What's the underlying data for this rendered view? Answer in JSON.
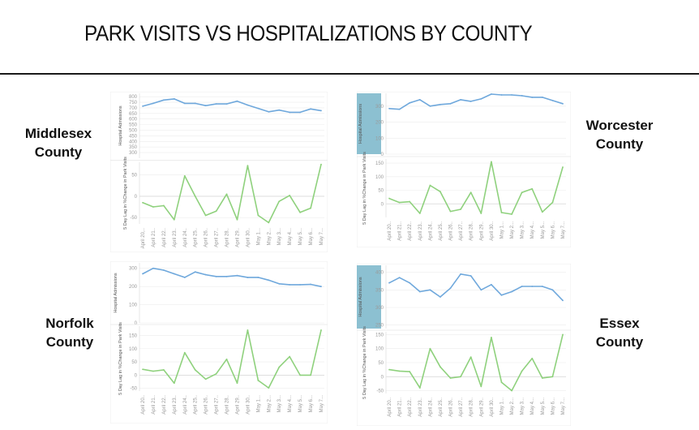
{
  "page_title": "PARK VISITS VS HOSPITALIZATIONS BY COUNTY",
  "colors": {
    "hospital_line": "#6fa8dc",
    "park_line": "#8fd17d",
    "axis_highlight": "#8cc0d1",
    "grid": "#ececec"
  },
  "chart_data": [
    {
      "county_label": "Middlesex County",
      "label_lines": [
        "Middlesex",
        "County"
      ],
      "highlight_axis": false,
      "x_ticks": [
        "April 20,..",
        "April 21..",
        "April 22..",
        "April 23..",
        "April 24..",
        "April 25..",
        "April 26..",
        "April 27..",
        "April 28..",
        "April 29..",
        "April 30..",
        "May 1...",
        "May 2...",
        "May 3...",
        "May 4...",
        "May 5...",
        "May 6...",
        "May 7..."
      ],
      "top": {
        "type": "line",
        "ylabel": "Hospital Admissions",
        "ylim": [
          250,
          830
        ],
        "yticks": [
          300,
          350,
          400,
          450,
          500,
          550,
          600,
          650,
          700,
          750,
          800
        ],
        "values": [
          715,
          740,
          770,
          780,
          740,
          740,
          720,
          735,
          735,
          760,
          725,
          695,
          665,
          680,
          660,
          660,
          690,
          675
        ]
      },
      "bottom": {
        "type": "line",
        "ylabel": "5 Day Lag in %Change in Park Visits",
        "ylim": [
          -65,
          80
        ],
        "yticks": [
          -50,
          0,
          50
        ],
        "values": [
          -15,
          -25,
          -22,
          -55,
          48,
          0,
          -45,
          -35,
          5,
          -55,
          72,
          -45,
          -62,
          -12,
          2,
          -38,
          -28,
          75
        ]
      }
    },
    {
      "county_label": "Worcester County",
      "label_lines": [
        "Worcester",
        "County"
      ],
      "highlight_axis": true,
      "x_ticks": [
        "April 20..",
        "April 21..",
        "April 22..",
        "April 23..",
        "April 24..",
        "April 25..",
        "April 26..",
        "April 27..",
        "April 28..",
        "April 29..",
        "April 30..",
        "May 1...",
        "May 2...",
        "May 3...",
        "May 4...",
        "May 5...",
        "May 6...",
        "May 7..."
      ],
      "top": {
        "type": "line",
        "ylabel": "Hospital Admissions",
        "ylim": [
          0,
          380
        ],
        "yticks": [
          0,
          100,
          200,
          300
        ],
        "values": [
          285,
          280,
          320,
          340,
          300,
          310,
          315,
          340,
          330,
          345,
          375,
          370,
          370,
          365,
          355,
          355,
          335,
          315
        ]
      },
      "bottom": {
        "type": "line",
        "ylabel": "5 Day Lag in %Change in Park Visits",
        "ylim": [
          -50,
          165
        ],
        "yticks": [
          0,
          50,
          100,
          150
        ],
        "values": [
          20,
          5,
          8,
          -35,
          68,
          45,
          -28,
          -20,
          42,
          -35,
          155,
          -32,
          -38,
          42,
          55,
          -30,
          5,
          135
        ]
      }
    },
    {
      "county_label": "Norfolk County",
      "label_lines": [
        "Norfolk",
        "County"
      ],
      "highlight_axis": false,
      "x_ticks": [
        "April 20..",
        "April 21..",
        "April 22..",
        "April 23..",
        "April 24..",
        "April 25..",
        "April 26..",
        "April 27..",
        "April 28..",
        "April 29..",
        "April 30..",
        "May 1...",
        "May 2...",
        "May 3...",
        "May 4...",
        "May 5...",
        "May 6...",
        "May 7..."
      ],
      "top": {
        "type": "line",
        "ylabel": "Hospital Admissions",
        "ylim": [
          0,
          330
        ],
        "yticks": [
          0,
          100,
          200,
          300
        ],
        "values": [
          270,
          300,
          290,
          270,
          250,
          280,
          265,
          255,
          255,
          260,
          250,
          250,
          235,
          215,
          210,
          210,
          212,
          200
        ]
      },
      "bottom": {
        "type": "line",
        "ylabel": "5 Day Lag in %Change in Park Visits",
        "ylim": [
          -60,
          185
        ],
        "yticks": [
          -50,
          0,
          50,
          100,
          150
        ],
        "values": [
          22,
          15,
          20,
          -30,
          85,
          20,
          -15,
          5,
          60,
          -30,
          170,
          -20,
          -48,
          30,
          70,
          0,
          0,
          170
        ]
      }
    },
    {
      "county_label": "Essex County",
      "label_lines": [
        "Essex",
        "County"
      ],
      "highlight_axis": true,
      "x_ticks": [
        "April 20..",
        "April 21..",
        "April 22..",
        "April 23..",
        "April 24..",
        "April 25..",
        "April 26..",
        "April 27..",
        "April 28..",
        "April 29..",
        "April 30..",
        "May 1...",
        "May 2...",
        "May 3...",
        "May 4...",
        "May 5...",
        "May 6...",
        "May 7..."
      ],
      "top": {
        "type": "line",
        "ylabel": "Hospital Admissions",
        "ylim": [
          240,
          420
        ],
        "yticks": [
          250,
          300,
          350,
          400
        ],
        "values": [
          370,
          385,
          370,
          345,
          350,
          330,
          355,
          395,
          390,
          350,
          365,
          335,
          345,
          360,
          360,
          360,
          350,
          320
        ]
      },
      "bottom": {
        "type": "line",
        "ylabel": "5 Day Lag in %Change in Park Visits",
        "ylim": [
          -60,
          160
        ],
        "yticks": [
          -50,
          0,
          50,
          100,
          150
        ],
        "values": [
          25,
          20,
          18,
          -40,
          100,
          35,
          -5,
          0,
          70,
          -35,
          140,
          -20,
          -50,
          20,
          65,
          -5,
          0,
          150
        ]
      }
    }
  ]
}
